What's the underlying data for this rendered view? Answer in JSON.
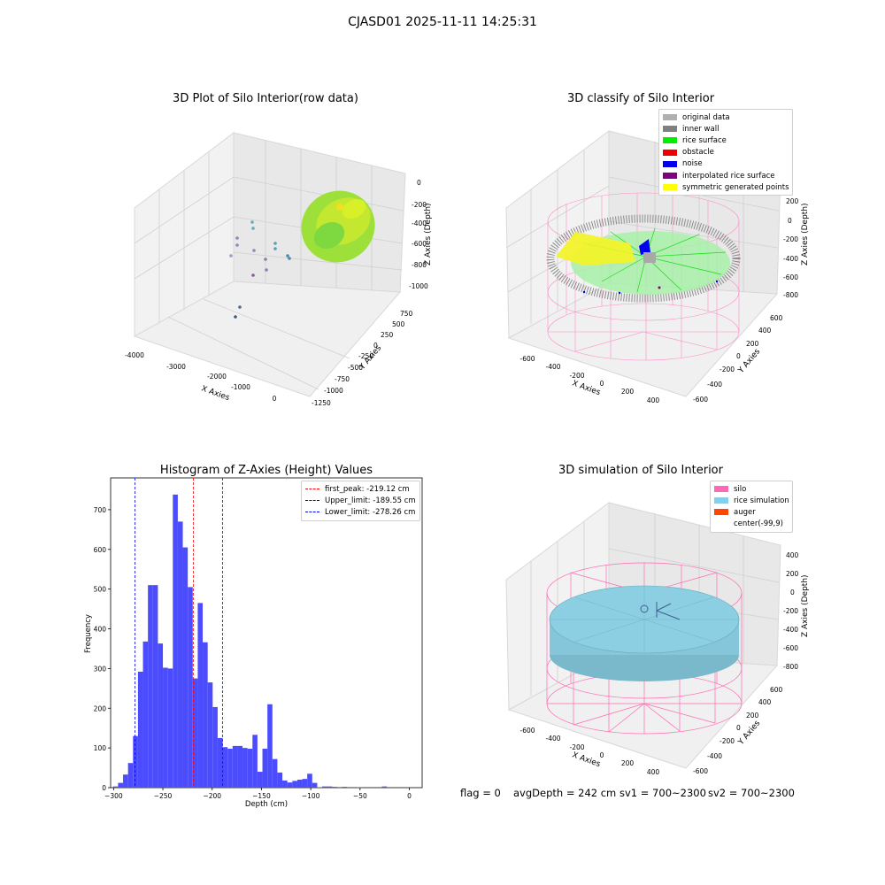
{
  "suptitle": "CJASD01 2025-11-11 14:25:31",
  "footer": {
    "flag": "flag = 0",
    "avg": "avgDepth = 242 cm",
    "sv1": "sv1 = 700~2300",
    "sv2": "sv2 = 700~2300"
  },
  "plots": {
    "raw": {
      "title": "3D Plot of Silo Interior(row data)",
      "xlabel": "X Axies",
      "ylabel": "Y Axies",
      "zlabel": "Z Axies (Depth)",
      "xticks": [
        "-4000",
        "-3000",
        "-2000",
        "-1000",
        "0"
      ],
      "yticks": [
        "750",
        "500",
        "250",
        "0",
        "-250",
        "-500",
        "-750",
        "-1000",
        "-1250"
      ],
      "zticks": [
        "0",
        "-200",
        "-400",
        "-600",
        "-800",
        "-1000"
      ]
    },
    "classify": {
      "title": "3D classify of Silo Interior",
      "xlabel": "X Axies",
      "ylabel": "Y Axies",
      "zlabel": "Z Axies (Depth)",
      "xticks": [
        "-600",
        "-400",
        "-200",
        "0",
        "200",
        "400"
      ],
      "yticks": [
        "600",
        "400",
        "200",
        "0",
        "-200",
        "-400",
        "-600"
      ],
      "zticks": [
        "200",
        "0",
        "-200",
        "-400",
        "-600",
        "-800"
      ],
      "legend": [
        {
          "label": "original data",
          "color": "#b0b0b0"
        },
        {
          "label": "inner wall",
          "color": "#808080"
        },
        {
          "label": "rice surface",
          "color": "#00ee00"
        },
        {
          "label": "obstacle",
          "color": "#ee0000"
        },
        {
          "label": "noise",
          "color": "#0000ee"
        },
        {
          "label": "interpolated rice surface",
          "color": "#800080"
        },
        {
          "label": "symmetric generated points",
          "color": "#ffff00"
        }
      ]
    },
    "simulation": {
      "title": "3D simulation of Silo Interior",
      "xlabel": "X Axies",
      "ylabel": "Y Axies",
      "zlabel": "Z Axies (Depth)",
      "xticks": [
        "-600",
        "-400",
        "-200",
        "0",
        "200",
        "400"
      ],
      "yticks": [
        "600",
        "400",
        "200",
        "0",
        "-200",
        "-400",
        "-600"
      ],
      "zticks": [
        "400",
        "200",
        "0",
        "-200",
        "-400",
        "-600",
        "-800"
      ],
      "legend": [
        {
          "label": "silo",
          "color": "#ff69b4"
        },
        {
          "label": "rice simulation",
          "color": "#87ceeb"
        },
        {
          "label": "auger",
          "color": "#ff4500"
        },
        {
          "label": "center(-99,9)",
          "color": ""
        }
      ]
    }
  },
  "chart_data": [
    {
      "type": "bar",
      "title": "Histogram of Z-Axies (Height) Values",
      "xlabel": "Depth (cm)",
      "ylabel": "Frequency",
      "bar_color": "#4c4cff",
      "xlim": [
        -303,
        13
      ],
      "ylim": [
        0,
        780
      ],
      "xticks": [
        -300,
        -250,
        -200,
        -150,
        -100,
        -50,
        0
      ],
      "yticks": [
        0,
        100,
        200,
        300,
        400,
        500,
        600,
        700
      ],
      "bin_start": -300.5,
      "bin_width": 5.05,
      "values": [
        3,
        12,
        33,
        62,
        130,
        292,
        368,
        510,
        510,
        363,
        302,
        300,
        738,
        670,
        605,
        505,
        275,
        465,
        366,
        265,
        203,
        125,
        102,
        98,
        105,
        105,
        100,
        98,
        133,
        40,
        98,
        210,
        72,
        38,
        18,
        13,
        17,
        20,
        22,
        35,
        12,
        1,
        3,
        3,
        2,
        0,
        2,
        0,
        0,
        1,
        0,
        0,
        0,
        0,
        3,
        0,
        0
      ],
      "vlines": [
        {
          "x": -219.12,
          "color": "#ff0000",
          "label": "first_peak: -219.12 cm"
        },
        {
          "x": -189.55,
          "color": "#0000ff",
          "label": "Upper_limit: -189.55 cm"
        },
        {
          "x": -278.26,
          "color": "#0000ff",
          "label": "Lower_limit: -278.26 cm"
        }
      ],
      "legend_position": "top-right"
    }
  ]
}
